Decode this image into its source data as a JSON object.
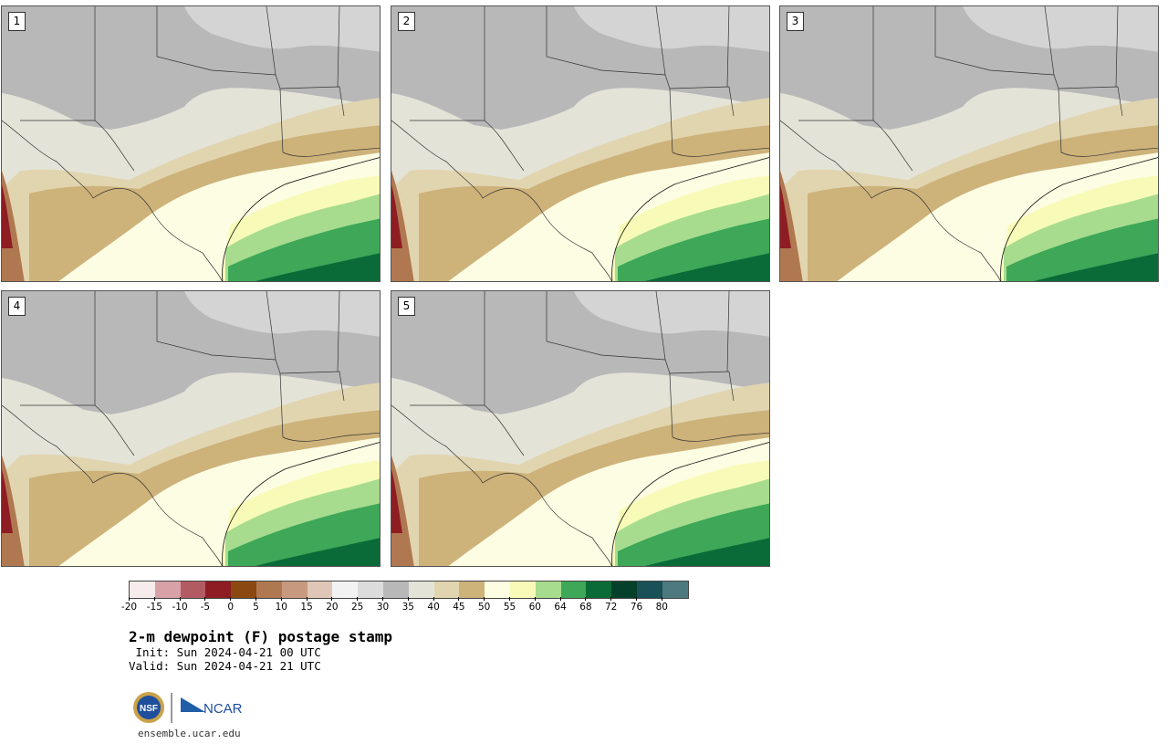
{
  "title": "2-m dewpoint (F) postage stamp",
  "init": " Init: Sun 2024-04-21 00 UTC",
  "valid": "Valid: Sun 2024-04-21 21 UTC",
  "footer_url": "ensemble.ucar.edu",
  "logos": {
    "nsf": "NSF",
    "ncar": "NCAR"
  },
  "panels": [
    {
      "number": "1"
    },
    {
      "number": "2"
    },
    {
      "number": "3"
    },
    {
      "number": "4"
    },
    {
      "number": "5"
    }
  ],
  "colorbar": {
    "colors": [
      "#f6ecec",
      "#d7a1a7",
      "#b35b63",
      "#8e1d23",
      "#8c4811",
      "#b07850",
      "#c79a80",
      "#e0c6b6",
      "#f2f2f2",
      "#dcdcdc",
      "#b8b8b8",
      "#e3e3d8",
      "#e1d5b0",
      "#cdb27a",
      "#fdfde4",
      "#f8fbb8",
      "#a7dc8e",
      "#3ea758",
      "#0a6b38",
      "#05402a",
      "#1a5058",
      "#4d7a80"
    ],
    "tick_labels": [
      "-20",
      "-15",
      "-10",
      "-5",
      "0",
      "5",
      "10",
      "15",
      "20",
      "25",
      "30",
      "35",
      "40",
      "45",
      "50",
      "55",
      "60",
      "64",
      "68",
      "72",
      "76",
      "80"
    ]
  },
  "icons": {
    "nsf": "nsf-seal-icon",
    "ncar": "ncar-logo-icon"
  }
}
